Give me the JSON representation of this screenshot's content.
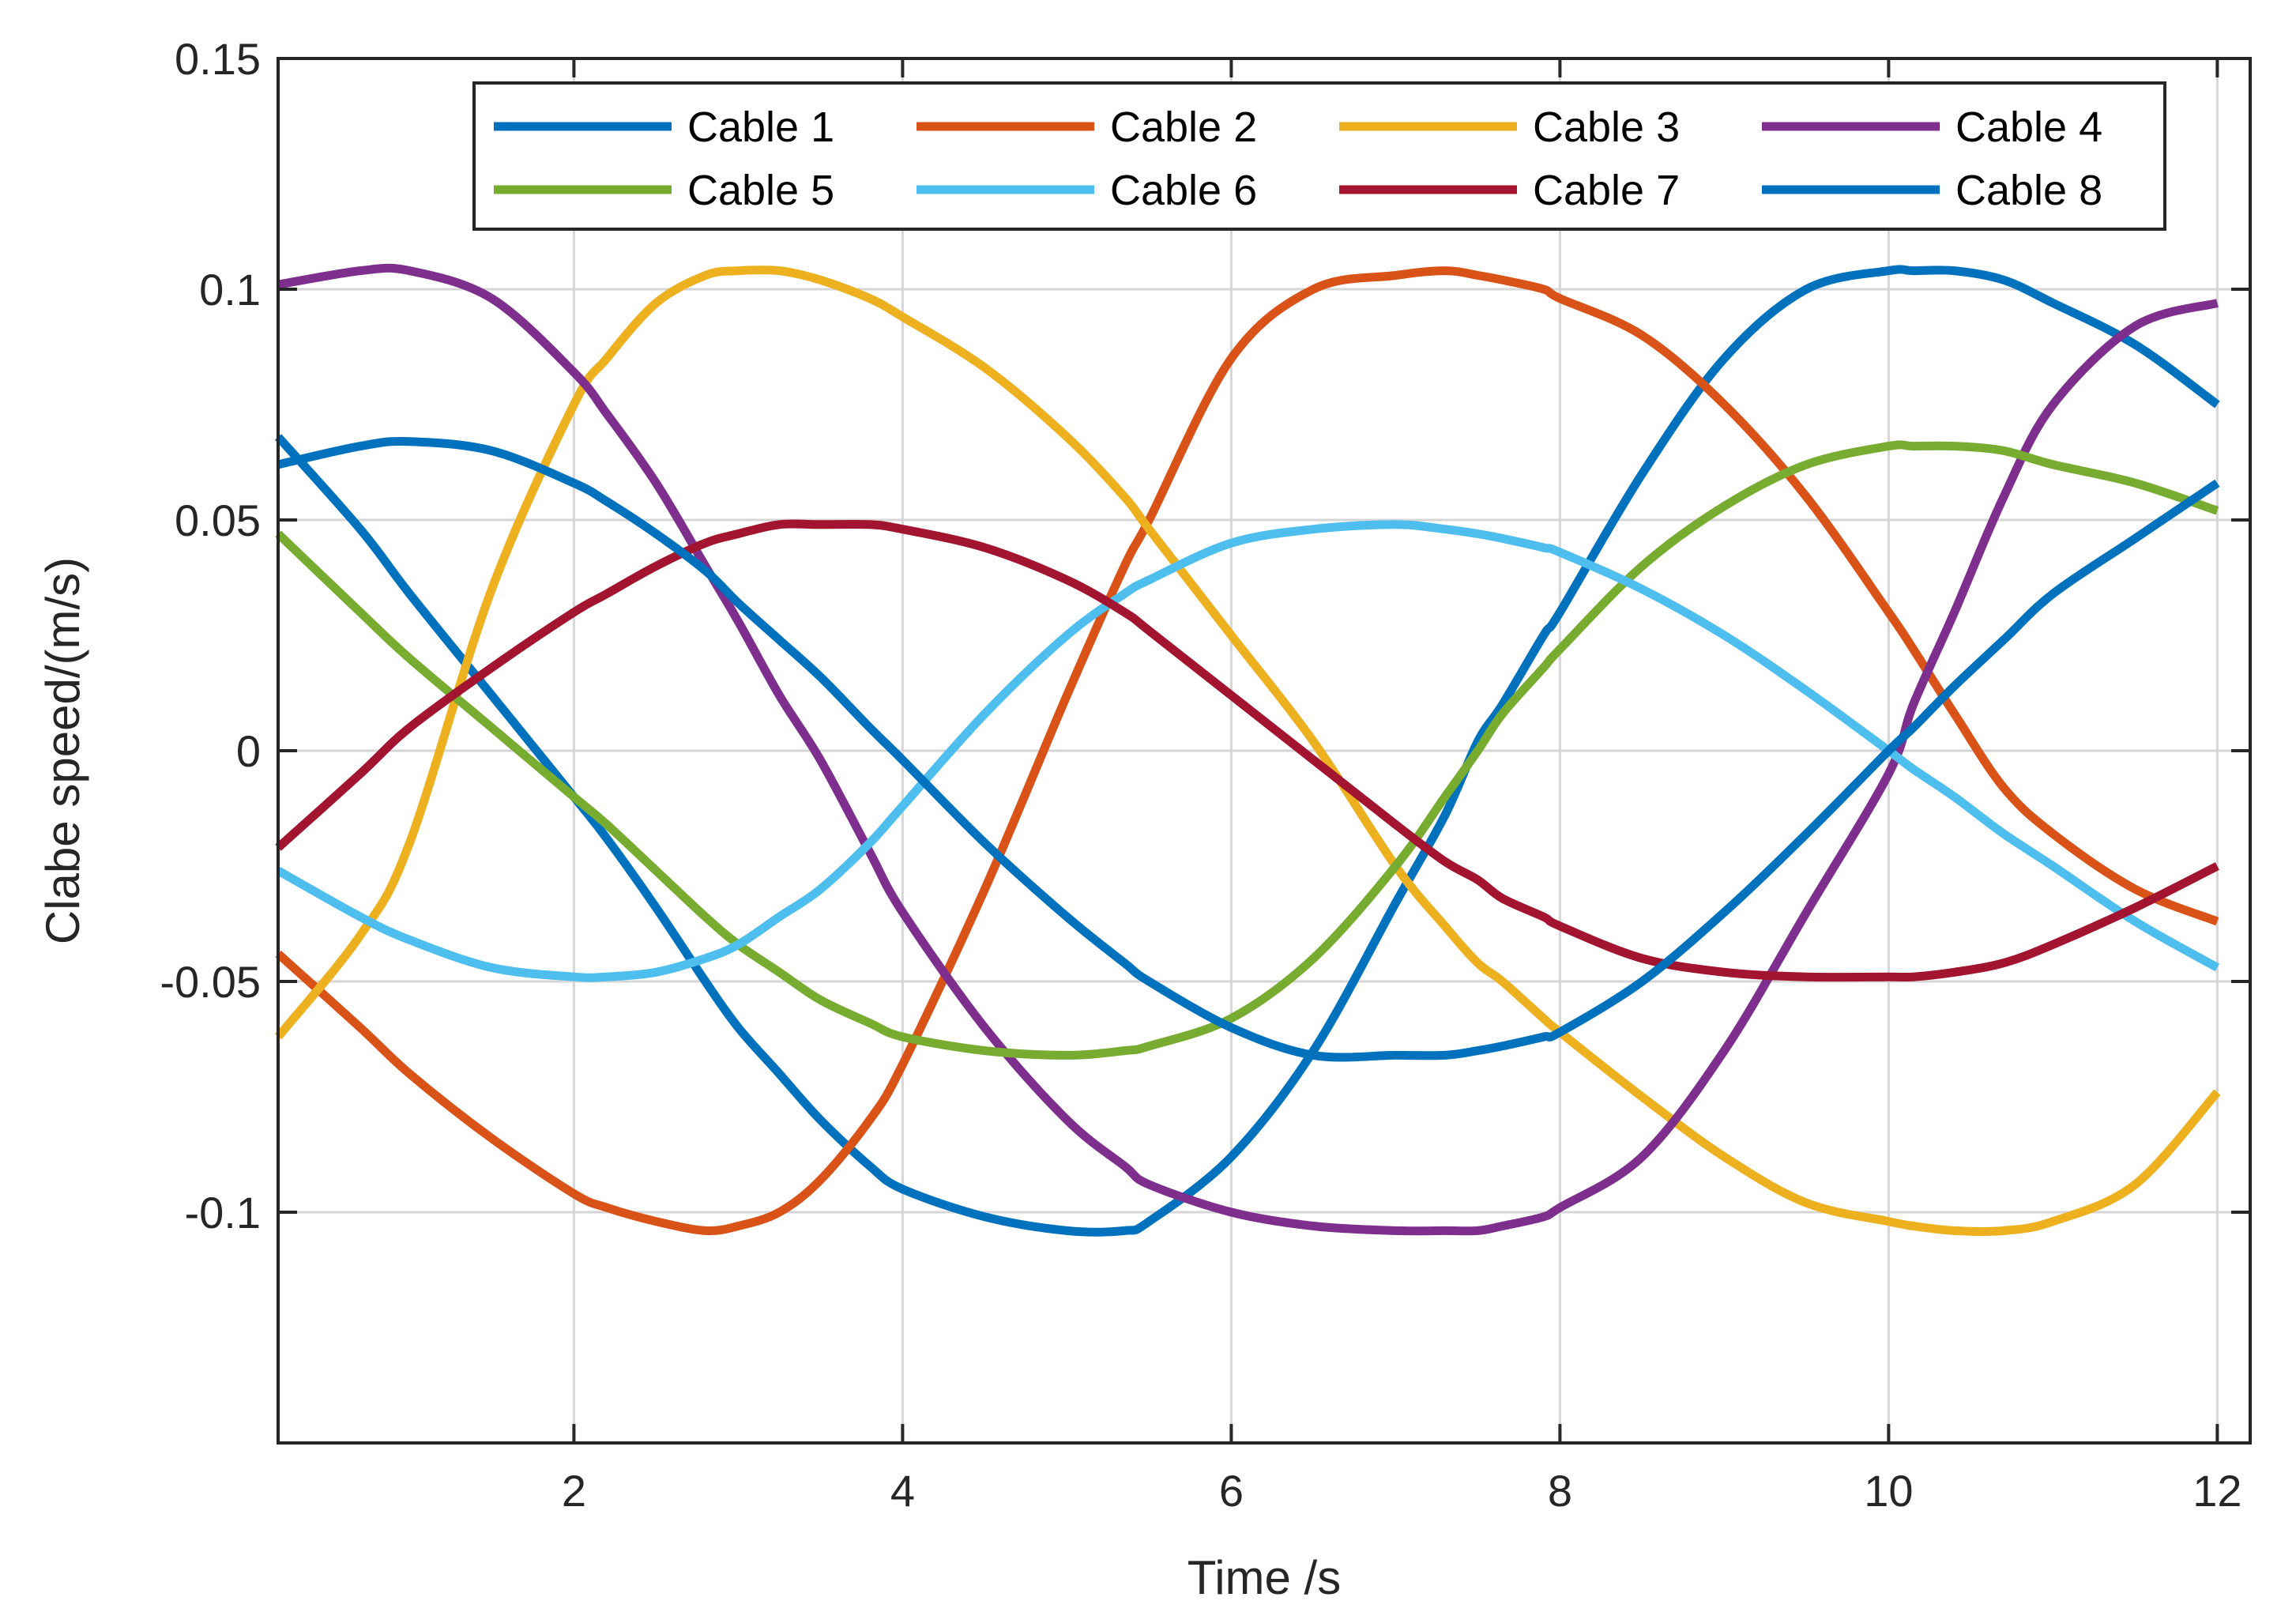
{
  "chart_data": {
    "type": "line",
    "title": "",
    "xlabel": "Time /s",
    "ylabel": "Clabe speed/(m/s)",
    "xlim": [
      0.2,
      12.2
    ],
    "ylim": [
      -0.15,
      0.15
    ],
    "xticks": [
      2,
      4,
      6,
      8,
      10,
      12
    ],
    "xtick_labels": [
      "2",
      "4",
      "6",
      "8",
      "10",
      "12"
    ],
    "yticks": [
      -0.1,
      -0.05,
      0,
      0.05,
      0.1,
      0.15
    ],
    "ytick_labels": [
      "-0.1",
      "-0.05",
      "0",
      "0.05",
      "0.1",
      "0.15"
    ],
    "grid": true,
    "legend_position": "top-right",
    "x": [
      0.2,
      0.7,
      1.0,
      1.5,
      2.0,
      2.2,
      2.5,
      2.8,
      3.0,
      3.25,
      3.5,
      3.8,
      4.0,
      4.5,
      5.0,
      5.35,
      5.5,
      6.0,
      6.5,
      7.0,
      7.3,
      7.5,
      7.65,
      7.9,
      8.0,
      8.5,
      9.0,
      9.5,
      10.0,
      10.15,
      10.4,
      10.7,
      11.0,
      11.5,
      12.0
    ],
    "series": [
      {
        "name": "Cable 1",
        "color": "#0072BD",
        "values": [
          0.068,
          0.048,
          0.034,
          0.012,
          -0.01,
          -0.019,
          -0.034,
          -0.05,
          -0.06,
          -0.07,
          -0.08,
          -0.09,
          -0.095,
          -0.101,
          -0.104,
          -0.104,
          -0.102,
          -0.088,
          -0.065,
          -0.033,
          -0.014,
          0.002,
          0.01,
          0.025,
          0.03,
          0.06,
          0.085,
          0.1,
          0.104,
          0.104,
          0.104,
          0.102,
          0.097,
          0.088,
          0.075
        ]
      },
      {
        "name": "Cable 2",
        "color": "#D95319",
        "values": [
          -0.044,
          -0.06,
          -0.07,
          -0.084,
          -0.096,
          -0.099,
          -0.102,
          -0.104,
          -0.103,
          -0.1,
          -0.093,
          -0.08,
          -0.068,
          -0.03,
          0.012,
          0.04,
          0.05,
          0.085,
          0.1,
          0.103,
          0.104,
          0.103,
          0.102,
          0.1,
          0.098,
          0.09,
          0.075,
          0.055,
          0.03,
          0.022,
          0.008,
          -0.008,
          -0.018,
          -0.03,
          -0.037
        ]
      },
      {
        "name": "Cable 3",
        "color": "#EDB120",
        "values": [
          -0.062,
          -0.04,
          -0.02,
          0.035,
          0.075,
          0.085,
          0.097,
          0.103,
          0.104,
          0.104,
          0.102,
          0.098,
          0.094,
          0.083,
          0.068,
          0.055,
          0.048,
          0.025,
          0.002,
          -0.025,
          -0.038,
          -0.046,
          -0.05,
          -0.058,
          -0.061,
          -0.075,
          -0.088,
          -0.098,
          -0.102,
          -0.103,
          -0.104,
          -0.104,
          -0.102,
          -0.094,
          -0.074
        ]
      },
      {
        "name": "Cable 4",
        "color": "#7E2F8E",
        "values": [
          0.101,
          0.104,
          0.104,
          0.098,
          0.082,
          0.073,
          0.058,
          0.04,
          0.028,
          0.012,
          -0.002,
          -0.022,
          -0.035,
          -0.06,
          -0.08,
          -0.09,
          -0.094,
          -0.1,
          -0.103,
          -0.104,
          -0.104,
          -0.104,
          -0.103,
          -0.101,
          -0.099,
          -0.088,
          -0.065,
          -0.035,
          -0.005,
          0.01,
          0.03,
          0.055,
          0.075,
          0.092,
          0.097
        ]
      },
      {
        "name": "Cable 5",
        "color": "#77AC30",
        "values": [
          0.047,
          0.03,
          0.02,
          0.005,
          -0.01,
          -0.016,
          -0.026,
          -0.036,
          -0.042,
          -0.048,
          -0.054,
          -0.059,
          -0.062,
          -0.065,
          -0.066,
          -0.065,
          -0.064,
          -0.058,
          -0.045,
          -0.025,
          -0.01,
          0.0,
          0.008,
          0.018,
          0.022,
          0.04,
          0.053,
          0.062,
          0.066,
          0.066,
          0.066,
          0.065,
          0.062,
          0.058,
          0.052
        ]
      },
      {
        "name": "Cable 6",
        "color": "#4DBEEE",
        "values": [
          -0.026,
          -0.036,
          -0.041,
          -0.047,
          -0.049,
          -0.049,
          -0.048,
          -0.045,
          -0.042,
          -0.036,
          -0.03,
          -0.02,
          -0.012,
          0.008,
          0.025,
          0.034,
          0.037,
          0.045,
          0.048,
          0.049,
          0.048,
          0.047,
          0.046,
          0.044,
          0.043,
          0.035,
          0.025,
          0.013,
          0.0,
          -0.004,
          -0.01,
          -0.018,
          -0.025,
          -0.037,
          -0.047
        ]
      },
      {
        "name": "Cable 7",
        "color": "#A2142F",
        "values": [
          -0.021,
          -0.005,
          0.005,
          0.018,
          0.03,
          0.034,
          0.04,
          0.045,
          0.047,
          0.049,
          0.049,
          0.049,
          0.048,
          0.044,
          0.037,
          0.03,
          0.026,
          0.012,
          -0.002,
          -0.016,
          -0.024,
          -0.028,
          -0.032,
          -0.036,
          -0.038,
          -0.045,
          -0.048,
          -0.049,
          -0.049,
          -0.049,
          -0.048,
          -0.046,
          -0.042,
          -0.034,
          -0.025
        ]
      },
      {
        "name": "Cable 8",
        "color": "#0072BD",
        "values": [
          0.062,
          0.066,
          0.067,
          0.065,
          0.058,
          0.054,
          0.047,
          0.039,
          0.032,
          0.024,
          0.016,
          0.005,
          -0.002,
          -0.02,
          -0.036,
          -0.046,
          -0.05,
          -0.06,
          -0.066,
          -0.066,
          -0.066,
          -0.065,
          -0.064,
          -0.062,
          -0.061,
          -0.05,
          -0.035,
          -0.018,
          0.0,
          0.005,
          0.014,
          0.024,
          0.034,
          0.046,
          0.058
        ]
      }
    ]
  }
}
